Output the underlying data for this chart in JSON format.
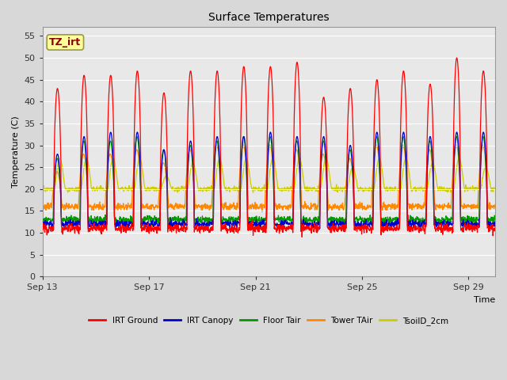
{
  "title": "Surface Temperatures",
  "xlabel": "Time",
  "ylabel": "Temperature (C)",
  "ylim": [
    0,
    57
  ],
  "yticks": [
    0,
    5,
    10,
    15,
    20,
    25,
    30,
    35,
    40,
    45,
    50,
    55
  ],
  "x_tick_labels": [
    "Sep 13",
    "Sep 17",
    "Sep 21",
    "Sep 25",
    "Sep 29"
  ],
  "x_tick_pos": [
    0,
    4,
    8,
    12,
    16
  ],
  "xlim": [
    0,
    17
  ],
  "background_color": "#d8d8d8",
  "plot_bg_color": "#e8e8e8",
  "grid_color": "#ffffff",
  "legend_labels": [
    "IRT Ground",
    "IRT Canopy",
    "Floor Tair",
    "Tower TAir",
    "TsoilD_2cm"
  ],
  "legend_colors": [
    "#ff0000",
    "#0000cc",
    "#009900",
    "#ff8800",
    "#cccc00"
  ],
  "annotation_text": "TZ_irt",
  "annotation_color": "#880000",
  "annotation_bg": "#ffff99",
  "n_days": 17,
  "points_per_day": 96
}
